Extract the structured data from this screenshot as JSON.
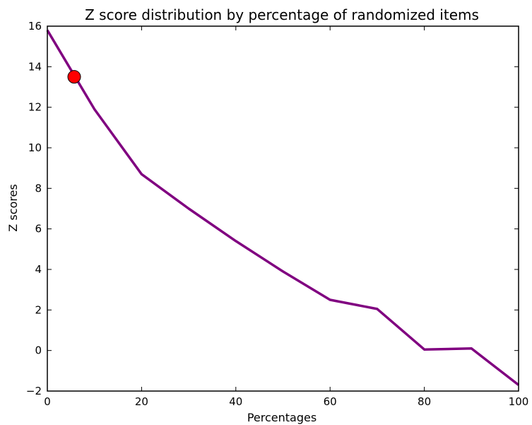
{
  "chart_data": {
    "type": "line",
    "title": "Z score distribution by percentage of randomized items",
    "xlabel": "Percentages",
    "ylabel": "Z scores",
    "xlim": [
      0,
      100
    ],
    "ylim": [
      -2,
      16
    ],
    "x_ticks": [
      0,
      20,
      40,
      60,
      80,
      100
    ],
    "y_ticks": [
      -2,
      0,
      2,
      4,
      6,
      8,
      10,
      12,
      14,
      16
    ],
    "x_tick_labels": [
      "0",
      "20",
      "40",
      "60",
      "80",
      "100"
    ],
    "y_tick_labels": [
      "−2",
      "0",
      "2",
      "4",
      "6",
      "8",
      "10",
      "12",
      "14",
      "16"
    ],
    "grid": false,
    "legend": false,
    "series": [
      {
        "color": "#800080",
        "x": [
          0,
          10,
          20,
          30,
          40,
          50,
          60,
          70,
          80,
          90,
          100
        ],
        "y": [
          15.8,
          11.9,
          8.7,
          7.0,
          5.4,
          3.9,
          2.5,
          2.05,
          0.05,
          0.1,
          -1.7
        ]
      }
    ],
    "highlight_point": {
      "x": 5.7,
      "y": 13.5,
      "color": "#ff0000",
      "edge_color": "#000000"
    }
  }
}
